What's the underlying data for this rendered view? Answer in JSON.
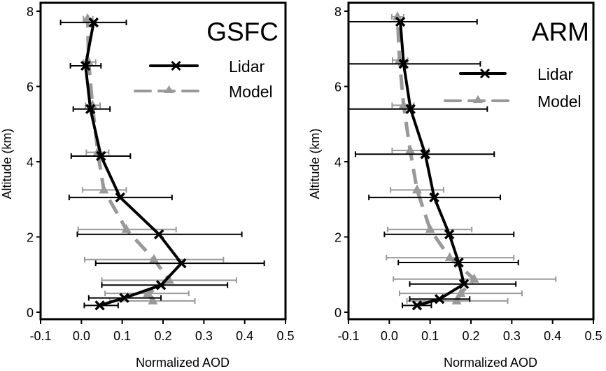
{
  "chart_data": [
    {
      "type": "line",
      "title": "GSFC",
      "xlabel": "Normalized AOD",
      "ylabel": "Altitude (km)",
      "xlim": [
        -0.1,
        0.5
      ],
      "ylim": [
        0,
        8
      ],
      "xticks": [
        "-0.1",
        "0.0",
        "0.1",
        "0.2",
        "0.3",
        "0.4",
        "0.5"
      ],
      "yticks": [
        "0",
        "2",
        "4",
        "6",
        "8"
      ],
      "grid": false,
      "legend": {
        "placement": "top-right",
        "entries": [
          "Lidar",
          "Model"
        ]
      },
      "series": [
        {
          "name": "Lidar",
          "color": "#000000",
          "style": "solid",
          "marker": "x",
          "points": [
            {
              "alt": 0.18,
              "aod": 0.045,
              "err_lo": 0.007,
              "err_hi": 0.09
            },
            {
              "alt": 0.38,
              "aod": 0.105,
              "err_lo": 0.018,
              "err_hi": 0.195
            },
            {
              "alt": 0.72,
              "aod": 0.195,
              "err_lo": 0.05,
              "err_hi": 0.358
            },
            {
              "alt": 1.3,
              "aod": 0.245,
              "err_lo": 0.035,
              "err_hi": 0.448
            },
            {
              "alt": 2.07,
              "aod": 0.19,
              "err_lo": -0.01,
              "err_hi": 0.393
            },
            {
              "alt": 3.05,
              "aod": 0.095,
              "err_lo": -0.03,
              "err_hi": 0.222
            },
            {
              "alt": 4.15,
              "aod": 0.048,
              "err_lo": -0.025,
              "err_hi": 0.12
            },
            {
              "alt": 5.4,
              "aod": 0.022,
              "err_lo": -0.02,
              "err_hi": 0.07
            },
            {
              "alt": 6.55,
              "aod": 0.01,
              "err_lo": -0.027,
              "err_hi": 0.048
            },
            {
              "alt": 7.7,
              "aod": 0.03,
              "err_lo": -0.051,
              "err_hi": 0.11
            }
          ]
        },
        {
          "name": "Model",
          "color": "#999999",
          "style": "dashed",
          "marker": "triangle",
          "points": [
            {
              "alt": 0.3,
              "aod": 0.175,
              "err_lo": 0.07,
              "err_hi": 0.278
            },
            {
              "alt": 0.5,
              "aod": 0.163,
              "err_lo": 0.058,
              "err_hi": 0.263
            },
            {
              "alt": 0.85,
              "aod": 0.215,
              "err_lo": 0.05,
              "err_hi": 0.38
            },
            {
              "alt": 1.4,
              "aod": 0.178,
              "err_lo": 0.008,
              "err_hi": 0.348
            },
            {
              "alt": 2.2,
              "aod": 0.11,
              "err_lo": -0.008,
              "err_hi": 0.232
            },
            {
              "alt": 3.25,
              "aod": 0.055,
              "err_lo": 0.003,
              "err_hi": 0.11
            },
            {
              "alt": 4.25,
              "aod": 0.04,
              "err_lo": 0.012,
              "err_hi": 0.067
            },
            {
              "alt": 5.5,
              "aod": 0.027,
              "err_lo": 0.01,
              "err_hi": 0.046
            },
            {
              "alt": 6.65,
              "aod": 0.018,
              "err_lo": 0.005,
              "err_hi": 0.035
            },
            {
              "alt": 7.8,
              "aod": 0.015,
              "err_lo": 0.005,
              "err_hi": 0.028
            }
          ]
        }
      ]
    },
    {
      "type": "line",
      "title": "ARM",
      "xlabel": "Normalized AOD",
      "ylabel": "Altitude (km)",
      "xlim": [
        -0.1,
        0.5
      ],
      "ylim": [
        0,
        8
      ],
      "xticks": [
        "-0.1",
        "0.0",
        "0.1",
        "0.2",
        "0.3",
        "0.4",
        "0.5"
      ],
      "yticks": [
        "0",
        "2",
        "4",
        "6",
        "8"
      ],
      "grid": false,
      "legend": {
        "placement": "top-right",
        "entries": [
          "Lidar",
          "Model"
        ]
      },
      "series": [
        {
          "name": "Lidar",
          "color": "#000000",
          "style": "solid",
          "marker": "x",
          "points": [
            {
              "alt": 0.18,
              "aod": 0.068,
              "err_lo": 0.032,
              "err_hi": 0.103
            },
            {
              "alt": 0.35,
              "aod": 0.123,
              "err_lo": 0.05,
              "err_hi": 0.197
            },
            {
              "alt": 0.75,
              "aod": 0.183,
              "err_lo": 0.05,
              "err_hi": 0.31
            },
            {
              "alt": 1.32,
              "aod": 0.17,
              "err_lo": 0.022,
              "err_hi": 0.316
            },
            {
              "alt": 2.07,
              "aod": 0.147,
              "err_lo": -0.012,
              "err_hi": 0.305
            },
            {
              "alt": 3.05,
              "aod": 0.11,
              "err_lo": -0.05,
              "err_hi": 0.272
            },
            {
              "alt": 4.2,
              "aod": 0.088,
              "err_lo": -0.083,
              "err_hi": 0.257
            },
            {
              "alt": 5.4,
              "aod": 0.052,
              "err_lo": -0.1,
              "err_hi": 0.24
            },
            {
              "alt": 6.6,
              "aod": 0.035,
              "err_lo": -0.1,
              "err_hi": 0.223
            },
            {
              "alt": 7.72,
              "aod": 0.027,
              "err_lo": -0.1,
              "err_hi": 0.215
            }
          ]
        },
        {
          "name": "Model",
          "color": "#999999",
          "style": "dashed",
          "marker": "triangle",
          "points": [
            {
              "alt": 0.3,
              "aod": 0.165,
              "err_lo": 0.043,
              "err_hi": 0.29
            },
            {
              "alt": 0.5,
              "aod": 0.175,
              "err_lo": 0.025,
              "err_hi": 0.325
            },
            {
              "alt": 0.88,
              "aod": 0.208,
              "err_lo": 0.01,
              "err_hi": 0.408
            },
            {
              "alt": 1.45,
              "aod": 0.148,
              "err_lo": -0.007,
              "err_hi": 0.305
            },
            {
              "alt": 2.2,
              "aod": 0.1,
              "err_lo": -0.004,
              "err_hi": 0.202
            },
            {
              "alt": 3.25,
              "aod": 0.068,
              "err_lo": 0.003,
              "err_hi": 0.133
            },
            {
              "alt": 4.3,
              "aod": 0.051,
              "err_lo": 0.007,
              "err_hi": 0.097
            },
            {
              "alt": 5.5,
              "aod": 0.035,
              "err_lo": 0.007,
              "err_hi": 0.06
            },
            {
              "alt": 6.7,
              "aod": 0.025,
              "err_lo": 0.008,
              "err_hi": 0.045
            },
            {
              "alt": 7.85,
              "aod": 0.02,
              "err_lo": 0.006,
              "err_hi": 0.035
            }
          ]
        }
      ]
    }
  ]
}
